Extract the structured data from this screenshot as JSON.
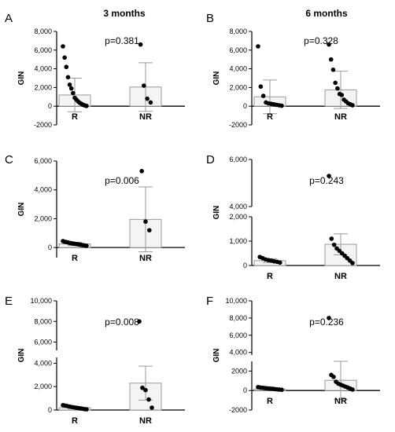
{
  "figure": {
    "columns": [
      "3 months",
      "6 months"
    ],
    "ylabel": "GIN",
    "colors": {
      "bar_fill": "#f4f4f4",
      "bar_stroke": "#9a9a9a",
      "point": "#000000",
      "axis": "#000000"
    }
  },
  "chart_data": [
    {
      "panel": "A",
      "column": "3 months",
      "type": "bar",
      "p_value": "p=0.381",
      "ylabel": "GIN",
      "categories": [
        "R",
        "NR"
      ],
      "values": [
        1200,
        2050
      ],
      "sd": [
        1800,
        2600
      ],
      "ylim": [
        -2000,
        8000
      ],
      "y_ticks": [
        "-2000",
        "0",
        "2,000",
        "4,000",
        "6,000",
        "8,000"
      ],
      "points": [
        [
          6400,
          5200,
          4200,
          3100,
          2300,
          1900,
          1400,
          900,
          700,
          500,
          350,
          250,
          150,
          80,
          30
        ],
        [
          6600,
          2200,
          800,
          400
        ]
      ]
    },
    {
      "panel": "B",
      "column": "6 months",
      "type": "bar",
      "p_value": "p=0.328",
      "ylabel": "GIN",
      "categories": [
        "R",
        "NR"
      ],
      "values": [
        1000,
        1750
      ],
      "sd": [
        1800,
        2000
      ],
      "ylim": [
        -2000,
        8000
      ],
      "y_ticks": [
        "-2000",
        "0",
        "2,000",
        "4,000",
        "6,000",
        "8,000"
      ],
      "points": [
        [
          6400,
          2100,
          1100,
          400,
          300,
          250,
          200,
          150,
          100,
          50
        ],
        [
          6600,
          5000,
          3900,
          2500,
          1900,
          1300,
          1200,
          700,
          500,
          300,
          200,
          100
        ]
      ]
    },
    {
      "panel": "C",
      "column": "3 months",
      "type": "bar",
      "p_value": "p=0.006",
      "ylabel": "GIN",
      "categories": [
        "R",
        "NR"
      ],
      "values": [
        250,
        1950
      ],
      "sd": [
        120,
        2250
      ],
      "ylim": [
        -700,
        6000
      ],
      "y_ticks": [
        "0",
        "2,000",
        "4,000",
        "6,000"
      ],
      "points": [
        [
          450,
          400,
          380,
          350,
          320,
          300,
          280,
          260,
          240,
          220,
          200,
          180,
          160,
          140,
          120
        ],
        [
          5300,
          1800,
          1200
        ]
      ]
    },
    {
      "panel": "D",
      "column": "6 months",
      "type": "bar",
      "p_value": "p=0.243",
      "ylabel": "GIN",
      "categories": [
        "R",
        "NR"
      ],
      "values": [
        200,
        870
      ],
      "sd": [
        80,
        430
      ],
      "ylim": [
        0,
        6000
      ],
      "axis_break": [
        2000,
        4000
      ],
      "y_ticks": [
        "0",
        "1,000",
        "2,000",
        "4,000",
        "6,000"
      ],
      "points": [
        [
          350,
          300,
          250,
          220,
          200,
          170,
          150,
          120
        ],
        [
          5300,
          1100,
          850,
          700,
          600,
          500,
          400,
          300,
          200,
          100
        ]
      ]
    },
    {
      "panel": "E",
      "column": "3 months",
      "type": "bar",
      "p_value": "p=0.008",
      "ylabel": "GIN",
      "categories": [
        "R",
        "NR"
      ],
      "values": [
        200,
        2300
      ],
      "sd": [
        80,
        1450
      ],
      "ylim": [
        0,
        10000
      ],
      "axis_break": [
        4500,
        5200
      ],
      "y_ticks": [
        "0",
        "2,000",
        "4,000",
        "6,000",
        "8,000",
        "10,000"
      ],
      "points": [
        [
          420,
          380,
          340,
          300,
          260,
          230,
          200,
          170,
          140,
          110,
          80,
          60
        ],
        [
          8000,
          1900,
          1700,
          900,
          200
        ]
      ]
    },
    {
      "panel": "F",
      "column": "6 months",
      "type": "bar",
      "p_value": "p=0.236",
      "ylabel": "GIN",
      "categories": [
        "R",
        "NR"
      ],
      "values": [
        150,
        1050
      ],
      "sd": [
        80,
        1950
      ],
      "ylim": [
        -2000,
        10000
      ],
      "axis_break": [
        3000,
        3700
      ],
      "y_ticks": [
        "-2000",
        "0",
        "2000",
        "4,000",
        "6,000",
        "8,000",
        "10,000"
      ],
      "points": [
        [
          350,
          300,
          280,
          250,
          220,
          200,
          180,
          150,
          120,
          100,
          80
        ],
        [
          8000,
          1600,
          1400,
          900,
          700,
          600,
          500,
          400,
          300,
          200,
          100
        ]
      ]
    }
  ]
}
